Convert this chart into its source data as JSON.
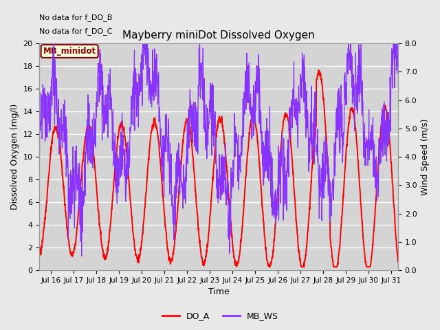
{
  "title": "Mayberry miniDot Dissolved Oxygen",
  "xlabel": "Time",
  "ylabel_left": "Dissolved Oxygen (mg/l)",
  "ylabel_right": "Wind Speed (m/s)",
  "no_data_text": [
    "No data for f_DO_B",
    "No data for f_DO_C"
  ],
  "legend_label_box": "MB_minidot",
  "legend_entries": [
    "DO_A",
    "MB_WS"
  ],
  "do_color": "red",
  "ws_color": "#8833ff",
  "do_lw": 1.4,
  "ws_lw": 0.9,
  "xlim_days": [
    15.5,
    31.3
  ],
  "ylim_left": [
    0,
    20
  ],
  "ylim_right": [
    0.0,
    8.0
  ],
  "xtick_days": [
    16,
    17,
    18,
    19,
    20,
    21,
    22,
    23,
    24,
    25,
    26,
    27,
    28,
    29,
    30,
    31
  ],
  "xtick_labels": [
    "Jul 16",
    "Jul 17",
    "Jul 18",
    "Jul 19",
    "Jul 20",
    "Jul 21",
    "Jul 22",
    "Jul 23",
    "Jul 24",
    "Jul 25",
    "Jul 26",
    "Jul 27",
    "Jul 28",
    "Jul 29",
    "Jul 30",
    "Jul 31"
  ],
  "yticks_left": [
    0,
    2,
    4,
    6,
    8,
    10,
    12,
    14,
    16,
    18,
    20
  ],
  "yticks_right": [
    0.0,
    1.0,
    2.0,
    3.0,
    4.0,
    5.0,
    6.0,
    7.0,
    8.0
  ],
  "bg_color": "#e8e8e8",
  "plot_bg": "#d4d4d4",
  "grid_color": "white",
  "figsize": [
    6.4,
    4.8
  ],
  "dpi": 100
}
